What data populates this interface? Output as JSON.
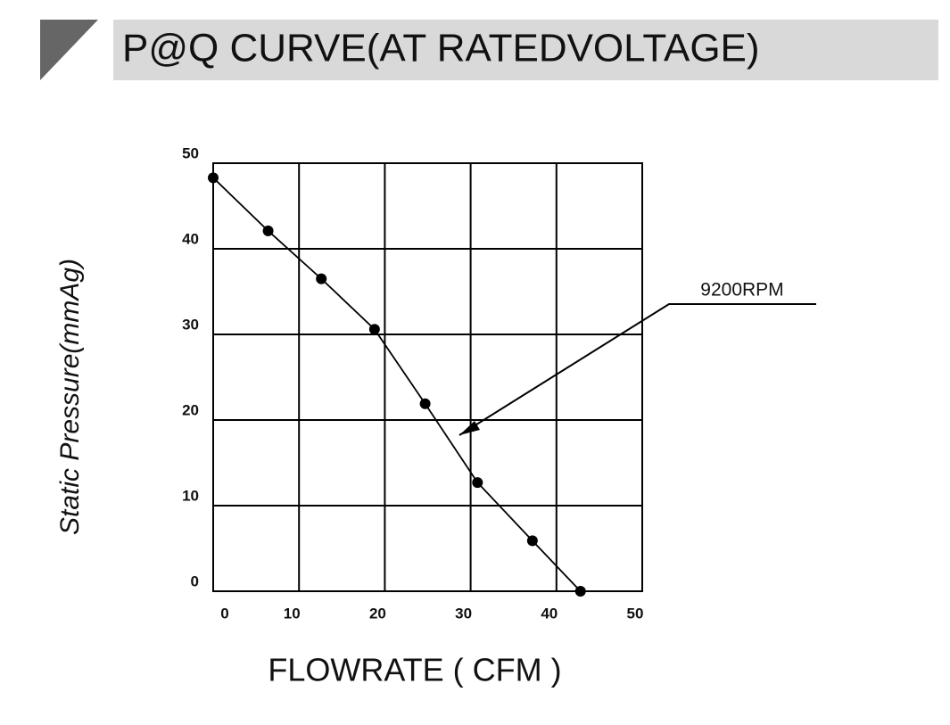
{
  "chart_data": {
    "type": "line",
    "title": "P@Q CURVE(AT RATEDVOLTAGE)",
    "x_label": "FLOWRATE ( CFM )",
    "y_label": "Static Pressure(mmAg)",
    "x": [
      0,
      6.4,
      12.6,
      18.8,
      24.7,
      30.8,
      37.2,
      42.8
    ],
    "series": [
      {
        "name": "9200RPM",
        "color": "#000000",
        "values": [
          48.3,
          42.1,
          36.5,
          30.6,
          21.9,
          12.7,
          5.9,
          0
        ]
      }
    ],
    "xlim": [
      0,
      50
    ],
    "ylim": [
      0,
      50
    ],
    "xticks": [
      0,
      10,
      20,
      30,
      40,
      50
    ],
    "yticks": [
      0,
      10,
      20,
      30,
      40,
      50
    ],
    "grid": true
  }
}
